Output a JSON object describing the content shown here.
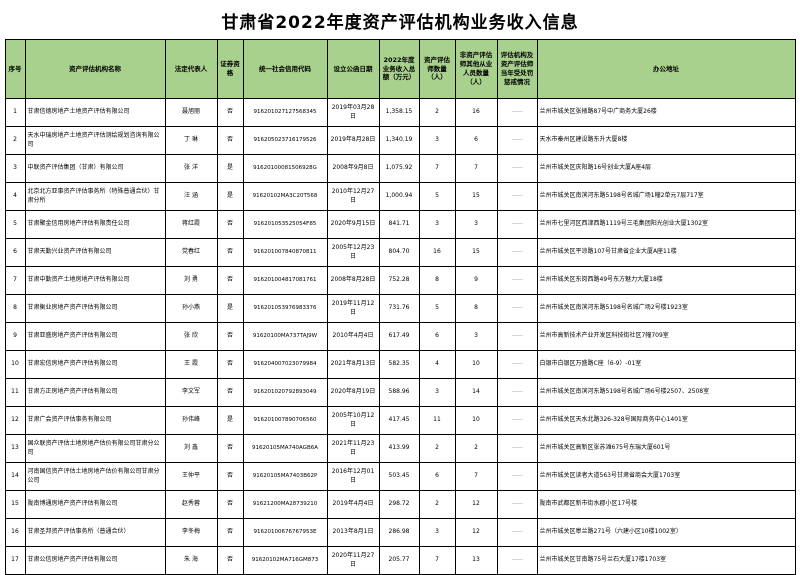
{
  "title": "甘肃省2022年度资产评估机构业务收入信息",
  "colors": {
    "header_bg": "#a9d18e",
    "border": "#000000",
    "penalty_dash_color": "#9e9e9e"
  },
  "table": {
    "columns": [
      "序号",
      "资产评估机构名称",
      "法定代表人",
      "证券资格",
      "统一社会信用代码",
      "设立公函日期",
      "2022年度业务收入总额（万元）",
      "资产评估师数量（人）",
      "非资产评估师其他从业人员数量（人）",
      "评估机构及资产评估师当年受处罚惩戒情况",
      "办公地址"
    ],
    "rows": [
      [
        "1",
        "甘肃信德房地产土地资产评估有限公司",
        "聂旭丽",
        "否",
        "916201027127568345",
        "2019年03月28日",
        "1,358.15",
        "2",
        "16",
        "——",
        "兰州市城关区张掖路87号中广商务大厦26楼"
      ],
      [
        "2",
        "天水中瑞房地产土地资产评估测绘规划咨询有限公司",
        "丁 琳",
        "否",
        "916205023716179526",
        "2019年8月28日",
        "1,340.19",
        "3",
        "6",
        "——",
        "天水市秦州区建设路东升大厦8楼"
      ],
      [
        "3",
        "中联资产评估集团（甘肃）有限公司",
        "张 洋",
        "是",
        "91620100081506928G",
        "2008年9月8日",
        "1,075.92",
        "7",
        "7",
        "——",
        "兰州市城关区庆阳路16号创业大厦A座4层"
      ],
      [
        "4",
        "北京北方亚事资产评估事务所（特殊普通合伙）甘肃分所",
        "汪 涵",
        "是",
        "91620102MA3C20T568",
        "2010年12月27日",
        "1,000.94",
        "5",
        "15",
        "——",
        "兰州市城关区南滨河东路5198号名城广场1幢2单元7层717室"
      ],
      [
        "5",
        "甘肃聚金信用房地产评估有限责任公司",
        "蒋红霞",
        "否",
        "916201053525054F85",
        "2020年9月15日",
        "841.71",
        "3",
        "3",
        "——",
        "兰州市七里河区西津西路1119号三毛集团阳光创业大厦1302室"
      ],
      [
        "6",
        "甘肃天勤兴业资产评估有限公司",
        "党春红",
        "否",
        "916201007840870811",
        "2005年12月23日",
        "804.70",
        "16",
        "15",
        "——",
        "兰州市城关区平凉路107号甘肃省企业大厦A座11楼"
      ],
      [
        "7",
        "甘肃中勤资产土地房地产评估有限公司",
        "刘 勇",
        "否",
        "916201004817081761",
        "2008年8月28日",
        "752.28",
        "8",
        "9",
        "——",
        "兰州市城关区东岗西路49号东方魅力大厦18楼"
      ],
      [
        "8",
        "甘肃衡业房地产资产评估有限公司",
        "孙小燕",
        "是",
        "916201053976983376",
        "2019年11月12日",
        "731.76",
        "5",
        "8",
        "——",
        "兰州市城关区南滨河东路5198号名城广场2号楼1923室"
      ],
      [
        "9",
        "甘肃亚盛房地产资产评估有限公司",
        "张 欣",
        "否",
        "91620100MA737TAJ9W",
        "2010年4月4日",
        "617.49",
        "6",
        "3",
        "——",
        "兰州市高新技术产业开发区科技街社区7幢709室"
      ],
      [
        "10",
        "甘肃宏信房地产资产评估有限公司",
        "王 霞",
        "否",
        "916204007023079984",
        "2021年8月13日",
        "582.35",
        "4",
        "10",
        "——",
        "白银市白银区万盛路C座（6-9）-01室"
      ],
      [
        "11",
        "甘肃方正房地产资产评估有限公司",
        "李文军",
        "否",
        "916201020792893049",
        "2020年8月19日",
        "588.96",
        "3",
        "14",
        "——",
        "兰州市城关区南滨河东路5198号名城广场6号楼2507、2508室"
      ],
      [
        "12",
        "甘肃广会资产评估事务有限公司",
        "孙伟峰",
        "是",
        "916201007890706560",
        "2005年10月12日",
        "417.45",
        "11",
        "10",
        "——",
        "兰州市城关区天水北路326-328号国际商务中心1401室"
      ],
      [
        "13",
        "国众联资产评估土地房地产估价有限公司甘肃分公司",
        "刘 鑫",
        "否",
        "91620105MA740AGB6A",
        "2021年11月23日",
        "413.99",
        "2",
        "2",
        "——",
        "兰州市城关区高新区张苏滩675号东瑞大厦601号"
      ],
      [
        "14",
        "河南国信资产评估土地房地产估价有限公司甘肃分公司",
        "王仲平",
        "否",
        "91620105MA7403B62P",
        "2016年12月01日",
        "503.45",
        "6",
        "7",
        "——",
        "兰州市城关区读者大道563号甘肃省商会大厦1703室"
      ],
      [
        "15",
        "陇南博通房地产资产评估有限公司",
        "赵秀蓉",
        "否",
        "91621200MA28739210",
        "2019年4月4日",
        "298.72",
        "2",
        "12",
        "——",
        "陇南市武都区新市街水郡小区17号楼"
      ],
      [
        "16",
        "甘肃圣邦资产评估事务所（普通合伙）",
        "李冬梅",
        "否",
        "91620100676767953E",
        "2013年8月1日",
        "286.98",
        "3",
        "12",
        "——",
        "兰州市城关区皋兰路271号（六建小区10楼1002室）"
      ],
      [
        "17",
        "甘肃公信房地产资产评估有限公司",
        "朱 海",
        "否",
        "91620102MA716GM873",
        "2020年11月27日",
        "205.77",
        "7",
        "13",
        "——",
        "兰州市城关区甘南路75号兰石大厦17楼1703室"
      ]
    ]
  }
}
